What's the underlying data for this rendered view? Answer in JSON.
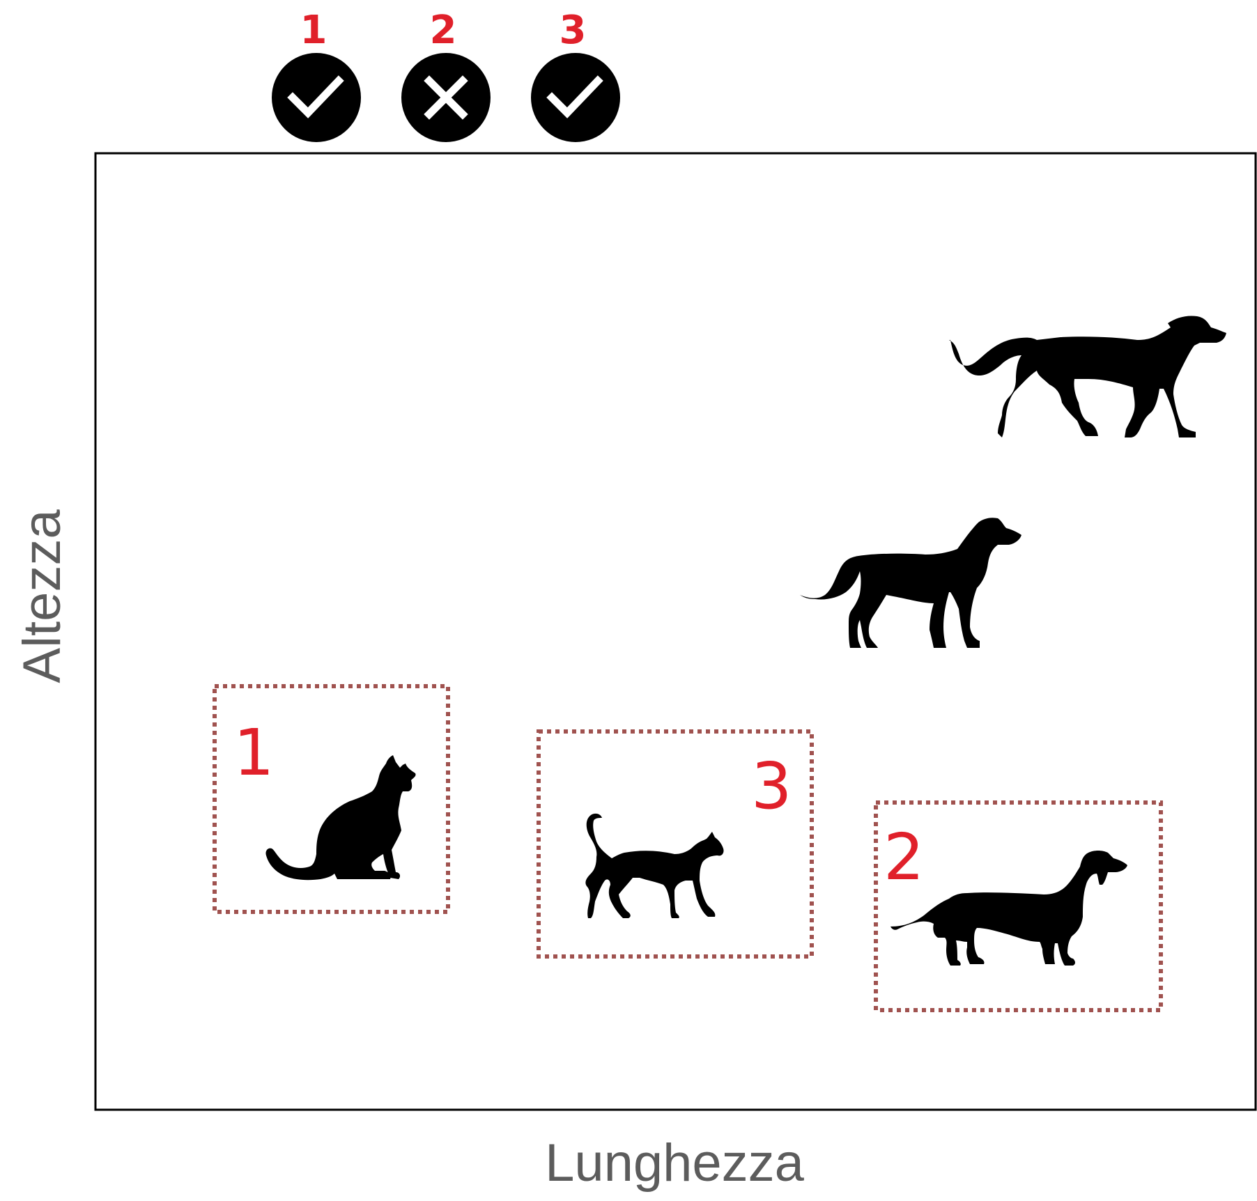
{
  "axes": {
    "x_label": "Lunghezza",
    "y_label": "Altezza"
  },
  "results": [
    {
      "number": "1",
      "status": "correct",
      "icon": "checkmark-icon"
    },
    {
      "number": "2",
      "status": "wrong",
      "icon": "cross-icon"
    },
    {
      "number": "3",
      "status": "correct",
      "icon": "checkmark-icon"
    }
  ],
  "animals": [
    {
      "kind": "dog",
      "pose": "walking",
      "selected": false
    },
    {
      "kind": "dog",
      "pose": "standing",
      "selected": false
    },
    {
      "kind": "cat",
      "pose": "sitting",
      "selected": true,
      "box_number": "1"
    },
    {
      "kind": "cat",
      "pose": "walking",
      "selected": true,
      "box_number": "3"
    },
    {
      "kind": "dog",
      "pose": "dachshund",
      "selected": true,
      "box_number": "2"
    }
  ],
  "colors": {
    "accent_red": "#e0202a",
    "selection_box": "#a0524f",
    "badge_fill": "#000000",
    "axis_label": "#5c5c5c"
  }
}
